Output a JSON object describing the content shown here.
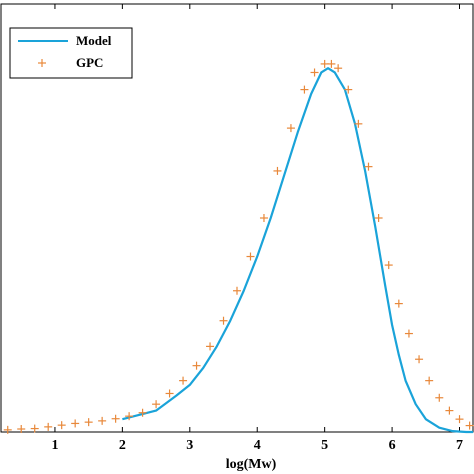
{
  "chart_data": {
    "type": "line",
    "xlabel": "log(Mw)",
    "ylabel": "",
    "title": "",
    "xlim": [
      0.2,
      7.2
    ],
    "ylim": [
      0,
      1.0
    ],
    "x_ticks": [
      "1",
      "2",
      "3",
      "4",
      "5",
      "6",
      "7"
    ],
    "x_tick_values": [
      1,
      2,
      3,
      4,
      5,
      6,
      7
    ],
    "grid": false,
    "legend_position": "top-left",
    "series": [
      {
        "name": "Model",
        "style": "line",
        "color": "#1aa3d9",
        "x": [
          2.0,
          2.5,
          2.8,
          3.0,
          3.2,
          3.4,
          3.6,
          3.8,
          4.0,
          4.2,
          4.4,
          4.6,
          4.8,
          4.95,
          5.05,
          5.15,
          5.3,
          5.45,
          5.6,
          5.75,
          5.9,
          6.0,
          6.1,
          6.2,
          6.35,
          6.5,
          6.7,
          6.9,
          7.1,
          7.2
        ],
        "y": [
          0.03,
          0.05,
          0.085,
          0.11,
          0.15,
          0.2,
          0.26,
          0.33,
          0.41,
          0.5,
          0.6,
          0.7,
          0.79,
          0.84,
          0.85,
          0.84,
          0.8,
          0.72,
          0.61,
          0.48,
          0.34,
          0.25,
          0.18,
          0.12,
          0.065,
          0.03,
          0.01,
          0.002,
          0.0,
          0.0
        ]
      },
      {
        "name": "GPC",
        "style": "marker",
        "color": "#e8883a",
        "x": [
          0.3,
          0.5,
          0.7,
          0.9,
          1.1,
          1.3,
          1.5,
          1.7,
          1.9,
          2.1,
          2.3,
          2.5,
          2.7,
          2.9,
          3.1,
          3.3,
          3.5,
          3.7,
          3.9,
          4.1,
          4.3,
          4.5,
          4.7,
          4.85,
          5.0,
          5.1,
          5.2,
          5.35,
          5.5,
          5.65,
          5.8,
          5.95,
          6.1,
          6.25,
          6.4,
          6.55,
          6.7,
          6.85,
          7.0,
          7.15
        ],
        "y": [
          0.005,
          0.007,
          0.008,
          0.012,
          0.016,
          0.02,
          0.023,
          0.026,
          0.031,
          0.037,
          0.045,
          0.065,
          0.09,
          0.12,
          0.155,
          0.2,
          0.26,
          0.33,
          0.41,
          0.5,
          0.61,
          0.71,
          0.8,
          0.84,
          0.86,
          0.86,
          0.85,
          0.8,
          0.72,
          0.62,
          0.5,
          0.39,
          0.3,
          0.23,
          0.17,
          0.12,
          0.08,
          0.05,
          0.03,
          0.015
        ]
      }
    ]
  }
}
